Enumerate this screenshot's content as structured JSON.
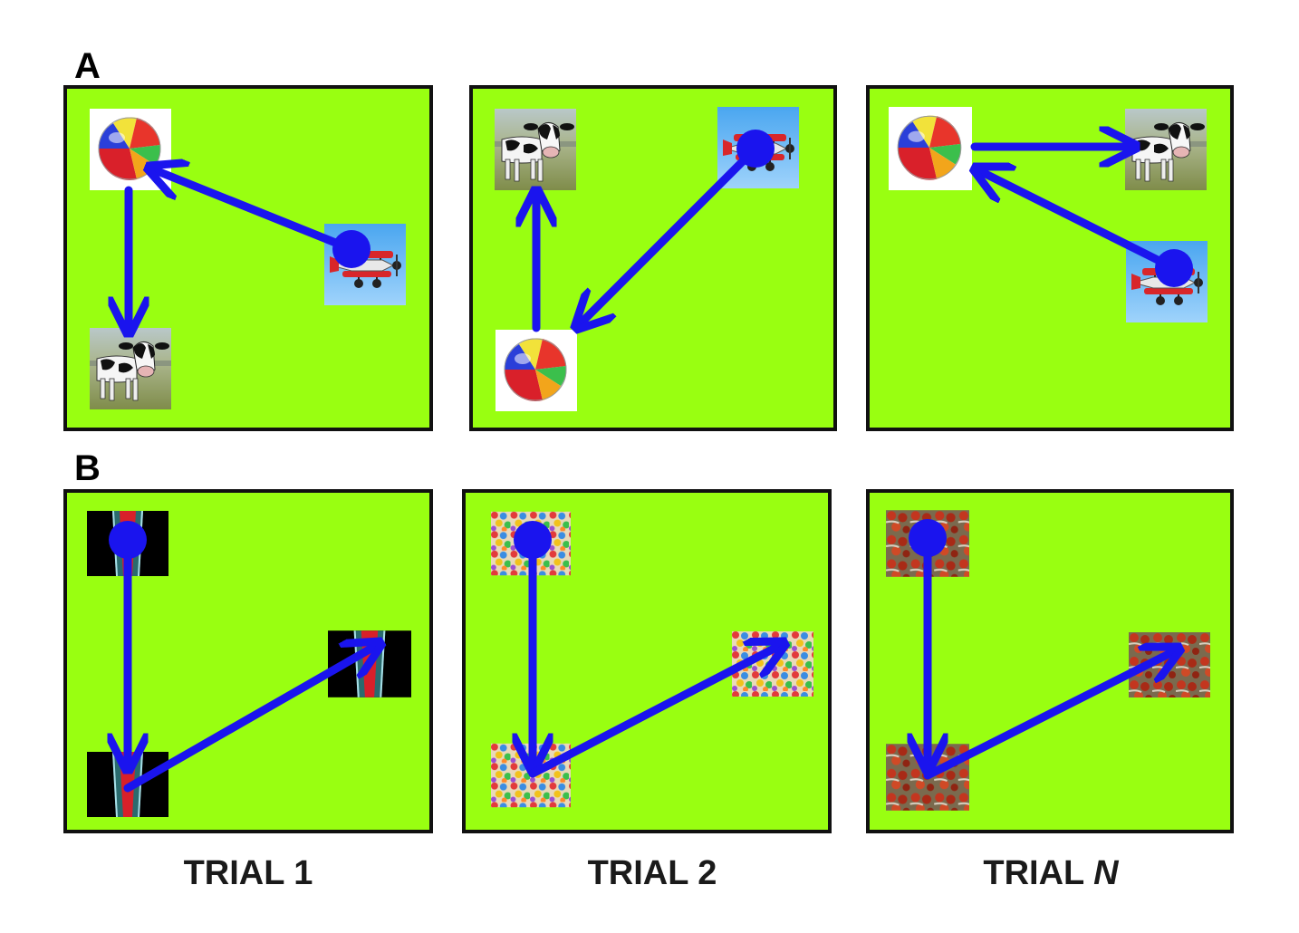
{
  "panel_labels": {
    "a": "A",
    "b": "B"
  },
  "trial_labels": {
    "t1": "TRIAL 1",
    "t2": "TRIAL 2",
    "tn_prefix": "TRIAL ",
    "tn_var": "N"
  },
  "colors": {
    "board_fill": "#99ff11",
    "board_border": "#111111",
    "path": "#1a14ee",
    "start_dot": "#1a14ee"
  },
  "row_a": {
    "stimuli": [
      "beach-ball",
      "cow",
      "biplane"
    ],
    "trials": [
      {
        "sequence": [
          "biplane",
          "beach-ball",
          "cow"
        ]
      },
      {
        "sequence": [
          "biplane",
          "beach-ball",
          "cow"
        ]
      },
      {
        "sequence": [
          "biplane",
          "beach-ball",
          "cow"
        ]
      }
    ]
  },
  "row_b": {
    "stimuli": [
      "striped-pattern",
      "confetti-texture",
      "fruit-texture"
    ],
    "trials": [
      {
        "sequence": [
          "start",
          "bottom-left",
          "right"
        ]
      },
      {
        "sequence": [
          "start",
          "bottom-left",
          "right"
        ]
      },
      {
        "sequence": [
          "start",
          "bottom-left",
          "right"
        ]
      }
    ]
  }
}
